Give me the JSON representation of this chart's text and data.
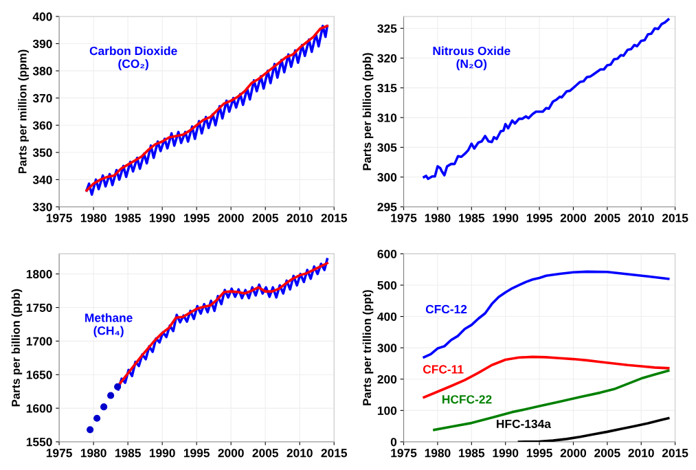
{
  "chart_data": [
    {
      "type": "line",
      "ylabel": "Parts per million (ppm)",
      "xlim": [
        1975,
        2015
      ],
      "xticks": [
        1975,
        1980,
        1985,
        1990,
        1995,
        2000,
        2005,
        2010,
        2015
      ],
      "ylim": [
        330,
        400
      ],
      "yticks": [
        330,
        340,
        350,
        360,
        370,
        380,
        390,
        400
      ],
      "grid": true,
      "line_style": "solid",
      "marker": "none",
      "series": [
        {
          "name": "Carbon Dioxide\n(CO₂)",
          "color": "#0000ff",
          "x": [
            1979.0,
            1979.35,
            1979.75,
            1980.35,
            1980.75,
            1981.35,
            1981.75,
            1982.35,
            1982.75,
            1983.35,
            1983.75,
            1984.35,
            1984.75,
            1985.35,
            1985.75,
            1986.35,
            1986.75,
            1987.35,
            1987.75,
            1988.35,
            1988.75,
            1989.35,
            1989.75,
            1990.35,
            1990.75,
            1991.35,
            1991.75,
            1992.35,
            1992.75,
            1993.35,
            1993.75,
            1994.35,
            1994.75,
            1995.35,
            1995.75,
            1996.35,
            1996.75,
            1997.35,
            1997.75,
            1998.35,
            1998.75,
            1999.35,
            1999.75,
            2000.35,
            2000.75,
            2001.35,
            2001.75,
            2002.35,
            2002.75,
            2003.35,
            2003.75,
            2004.35,
            2004.75,
            2005.35,
            2005.75,
            2006.35,
            2006.75,
            2007.35,
            2007.75,
            2008.35,
            2008.75,
            2009.35,
            2009.75,
            2010.35,
            2010.75,
            2011.35,
            2011.75,
            2012.35,
            2012.75,
            2013.35,
            2013.75,
            2014.0
          ],
          "values": [
            336,
            338.5,
            334.5,
            340,
            336.5,
            341.5,
            337.5,
            342,
            338,
            343.5,
            340,
            345,
            341,
            346.5,
            343,
            348,
            344,
            349.5,
            346,
            352.5,
            348,
            354,
            350.5,
            355,
            351.5,
            357,
            352.5,
            357.5,
            353.5,
            357.5,
            354,
            359.5,
            355,
            361.5,
            357,
            363,
            359,
            364,
            360,
            367,
            362.5,
            369,
            365,
            370,
            366.5,
            371.5,
            367.5,
            373.5,
            369.5,
            376.5,
            372.5,
            378,
            373.5,
            380,
            375.5,
            382.5,
            377.5,
            384,
            379.5,
            386,
            381.5,
            387.5,
            383,
            389.5,
            385.5,
            391.5,
            387,
            393.5,
            389,
            396.5,
            392.5,
            396.5
          ]
        },
        {
          "color": "#ff0000",
          "x": [
            1979,
            1980,
            1981,
            1982,
            1983,
            1984,
            1985,
            1986,
            1987,
            1988,
            1989,
            1990,
            1991,
            1992,
            1993,
            1994,
            1995,
            1996,
            1997,
            1998,
            1999,
            2000,
            2001,
            2002,
            2003,
            2004,
            2005,
            2006,
            2007,
            2008,
            2009,
            2010,
            2011,
            2012,
            2013,
            2014
          ],
          "values": [
            336,
            338.5,
            340,
            341,
            341.5,
            344,
            345.5,
            347,
            348.5,
            351,
            353,
            354,
            355.5,
            356,
            356.5,
            358,
            360,
            362,
            363,
            365.5,
            368,
            369,
            370.5,
            372.5,
            375.5,
            377,
            379,
            381,
            383,
            385,
            386,
            388.5,
            390.5,
            392.5,
            395.5,
            396.5
          ]
        }
      ]
    },
    {
      "type": "line",
      "ylabel": "Parts per billion (ppb)",
      "xlim": [
        1975,
        2015
      ],
      "xticks": [
        1975,
        1980,
        1985,
        1990,
        1995,
        2000,
        2005,
        2010,
        2015
      ],
      "ylim": [
        295,
        327
      ],
      "yticks": [
        295,
        300,
        305,
        310,
        315,
        320,
        325
      ],
      "grid": true,
      "line_style": "solid",
      "marker": "none",
      "series": [
        {
          "name": "Nitrous Oxide\n(N₂O)",
          "color": "#0000ff",
          "x": [
            1978.0,
            1978.3,
            1978.6,
            1979.2,
            1979.6,
            1980.0,
            1980.4,
            1980.6,
            1981.0,
            1981.4,
            1982.0,
            1982.5,
            1983.0,
            1983.5,
            1984.0,
            1984.5,
            1985.0,
            1985.4,
            1986.0,
            1986.5,
            1987.0,
            1987.5,
            1988.0,
            1988.3,
            1988.7,
            1989.3,
            1989.7,
            1990.0,
            1990.4,
            1991.0,
            1991.4,
            1992.0,
            1992.5,
            1993.0,
            1993.4,
            1994.0,
            1994.5,
            1995.0,
            1995.5,
            1996.0,
            1996.4,
            1997.0,
            1997.5,
            1998.0,
            1998.3,
            1999.0,
            1999.5,
            2000.0,
            2000.5,
            2001.0,
            2001.5,
            2002.0,
            2002.5,
            2003.0,
            2003.5,
            2004.0,
            2004.5,
            2005.0,
            2005.5,
            2006.0,
            2006.5,
            2007.0,
            2007.4,
            2008.0,
            2008.5,
            2009.0,
            2009.4,
            2010.0,
            2010.5,
            2011.0,
            2011.5,
            2012.0,
            2012.5,
            2013.0,
            2013.5,
            2014.0
          ],
          "values": [
            300.0,
            300.2,
            299.7,
            300.1,
            300.1,
            301.8,
            301.5,
            301.0,
            300.3,
            301.8,
            302.2,
            302.2,
            303.5,
            303.4,
            303.9,
            304.5,
            305.6,
            304.8,
            305.8,
            306.0,
            306.9,
            306.0,
            305.9,
            306.7,
            306.4,
            307.7,
            307.8,
            308.9,
            308.2,
            309.5,
            309.0,
            309.8,
            309.8,
            310.2,
            309.9,
            310.6,
            311.0,
            311.0,
            311.0,
            311.6,
            311.5,
            312.7,
            313.0,
            313.5,
            313.4,
            314.4,
            314.5,
            315.0,
            315.5,
            316.0,
            316.1,
            316.8,
            316.9,
            317.3,
            317.7,
            318.1,
            318.1,
            318.8,
            318.9,
            319.8,
            319.9,
            320.5,
            320.4,
            321.4,
            321.5,
            322.2,
            322.0,
            322.9,
            323.0,
            324.0,
            324.1,
            325.0,
            324.9,
            325.7,
            326.0,
            326.5
          ]
        }
      ]
    },
    {
      "type": "line",
      "ylabel": "Parts per billion (ppb)",
      "xlim": [
        1975,
        2015
      ],
      "xticks": [
        1975,
        1980,
        1985,
        1990,
        1995,
        2000,
        2005,
        2010,
        2015
      ],
      "ylim": [
        1550,
        1830
      ],
      "yticks": [
        1550,
        1600,
        1650,
        1700,
        1750,
        1800
      ],
      "grid": true,
      "line_style": "solid",
      "marker": "none",
      "series": [
        {
          "name": "Methane\n(CH₄)",
          "color": "#0000ff",
          "x": [
            1983.6,
            1984.1,
            1984.6,
            1985.1,
            1985.6,
            1986.1,
            1986.6,
            1987.1,
            1987.6,
            1988.1,
            1988.6,
            1989.1,
            1989.6,
            1990.1,
            1990.6,
            1991.1,
            1991.6,
            1992.1,
            1992.6,
            1993.1,
            1993.6,
            1994.1,
            1994.6,
            1995.1,
            1995.6,
            1996.1,
            1996.6,
            1997.1,
            1997.6,
            1998.1,
            1998.6,
            1999.1,
            1999.6,
            2000.1,
            2000.6,
            2001.1,
            2001.6,
            2002.1,
            2002.6,
            2003.1,
            2003.6,
            2004.1,
            2004.6,
            2005.1,
            2005.6,
            2006.1,
            2006.6,
            2007.1,
            2007.6,
            2008.1,
            2008.6,
            2009.1,
            2009.6,
            2010.1,
            2010.6,
            2011.1,
            2011.6,
            2012.1,
            2012.6,
            2013.1,
            2013.6,
            2014.0
          ],
          "values": [
            1628,
            1644,
            1638,
            1657,
            1648,
            1669,
            1663,
            1680,
            1673,
            1692,
            1684,
            1704,
            1698,
            1713,
            1706,
            1723,
            1715,
            1739,
            1728,
            1738,
            1729,
            1745,
            1733,
            1752,
            1741,
            1755,
            1743,
            1760,
            1745,
            1767,
            1755,
            1776,
            1765,
            1778,
            1766,
            1777,
            1764,
            1776,
            1764,
            1780,
            1768,
            1784,
            1771,
            1780,
            1766,
            1780,
            1765,
            1783,
            1771,
            1790,
            1777,
            1797,
            1783,
            1800,
            1788,
            1806,
            1793,
            1811,
            1800,
            1815,
            1806,
            1822
          ]
        },
        {
          "color": "#ff0000",
          "x": [
            1983.7,
            1985,
            1986,
            1987,
            1988,
            1989,
            1990,
            1991,
            1992,
            1993,
            1994,
            1995,
            1996,
            1997,
            1998,
            1999,
            2000,
            2001,
            2002,
            2003,
            2004,
            2005,
            2006,
            2007,
            2008,
            2009,
            2010,
            2011,
            2012,
            2013,
            2014
          ],
          "values": [
            1635,
            1652,
            1665,
            1678,
            1690,
            1702,
            1712,
            1720,
            1735,
            1736,
            1742,
            1748,
            1751,
            1753,
            1762,
            1773,
            1774,
            1773,
            1771,
            1775,
            1780,
            1774,
            1774,
            1778,
            1786,
            1793,
            1798,
            1801,
            1806,
            1811,
            1816
          ]
        },
        {
          "type": "scatter",
          "marker": "circle",
          "color": "#0000cc",
          "x": [
            1979.5,
            1980.5,
            1981.5,
            1982.5,
            1983.5
          ],
          "values": [
            1568,
            1585,
            1602,
            1619,
            1632
          ]
        }
      ]
    },
    {
      "type": "line",
      "ylabel": "Parts per trillion (ppt)",
      "xlim": [
        1975,
        2015
      ],
      "xticks": [
        1975,
        1980,
        1985,
        1990,
        1995,
        2000,
        2005,
        2010,
        2015
      ],
      "ylim": [
        0,
        600
      ],
      "yticks": [
        0,
        100,
        200,
        300,
        400,
        500,
        600
      ],
      "grid": true,
      "line_style": "solid",
      "marker": "none",
      "series": [
        {
          "name": "CFC-12",
          "color": "#0000ff",
          "x": [
            1978,
            1979,
            1980,
            1981,
            1982,
            1983,
            1984,
            1985,
            1986,
            1987,
            1988,
            1989,
            1990,
            1991,
            1992,
            1993,
            1994,
            1995,
            1996,
            1998,
            2000,
            2002,
            2005,
            2008,
            2011,
            2014
          ],
          "values": [
            270,
            280,
            298,
            305,
            325,
            338,
            360,
            373,
            393,
            410,
            440,
            462,
            477,
            490,
            500,
            510,
            518,
            523,
            530,
            536,
            541,
            543,
            542,
            535,
            528,
            520
          ]
        },
        {
          "name": "CFC-11",
          "color": "#ff0000",
          "x": [
            1978,
            1980,
            1982,
            1984,
            1986,
            1988,
            1990,
            1992,
            1994,
            1996,
            1998,
            2000,
            2002,
            2004,
            2006,
            2008,
            2010,
            2012,
            2014
          ],
          "values": [
            142,
            160,
            178,
            197,
            220,
            245,
            262,
            269,
            271,
            270,
            267,
            264,
            260,
            255,
            250,
            245,
            241,
            237,
            235
          ]
        },
        {
          "name": "HCFC-22",
          "color": "#008000",
          "x": [
            1979.5,
            1982,
            1985,
            1988,
            1991,
            1993,
            1995,
            1998,
            2001,
            2004,
            2006,
            2008,
            2010,
            2012,
            2014
          ],
          "values": [
            38,
            48,
            60,
            77,
            95,
            104,
            114,
            128,
            143,
            157,
            168,
            185,
            202,
            215,
            227
          ]
        },
        {
          "name": "HFC-134a",
          "color": "#000000",
          "x": [
            1992,
            1995,
            1997,
            1999,
            2001,
            2003,
            2005,
            2007,
            2009,
            2011,
            2013,
            2014
          ],
          "values": [
            0,
            1,
            4,
            9,
            16,
            24,
            32,
            41,
            50,
            59,
            70,
            75
          ]
        }
      ]
    }
  ]
}
